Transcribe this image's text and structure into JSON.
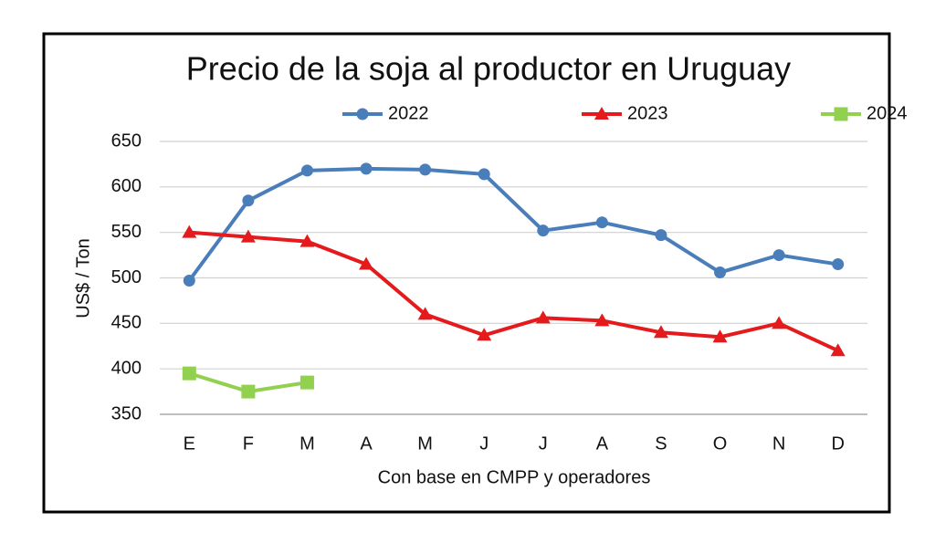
{
  "chart_data": {
    "type": "line",
    "title": "Precio de la soja al productor en Uruguay",
    "y_label": "US$ / Ton",
    "x_label": "Con base en CMPP y operadores",
    "categories": [
      "E",
      "F",
      "M",
      "A",
      "M",
      "J",
      "J",
      "A",
      "S",
      "O",
      "N",
      "D"
    ],
    "series": [
      {
        "name": "2022",
        "color": "#4a7ebb",
        "marker": "circle",
        "values": [
          497,
          585,
          618,
          620,
          619,
          614,
          552,
          561,
          547,
          506,
          525,
          515
        ]
      },
      {
        "name": "2023",
        "color": "#e41a1c",
        "marker": "triangle",
        "values": [
          550,
          545,
          540,
          515,
          460,
          437,
          456,
          453,
          440,
          435,
          450,
          420
        ]
      },
      {
        "name": "2024",
        "color": "#92d050",
        "marker": "square",
        "values": [
          395,
          375,
          385,
          null,
          null,
          null,
          null,
          null,
          null,
          null,
          null,
          null
        ]
      }
    ],
    "ylim": [
      350,
      650
    ],
    "yticks": [
      350,
      400,
      450,
      500,
      550,
      600,
      650
    ],
    "grid": true,
    "legend": "top"
  }
}
